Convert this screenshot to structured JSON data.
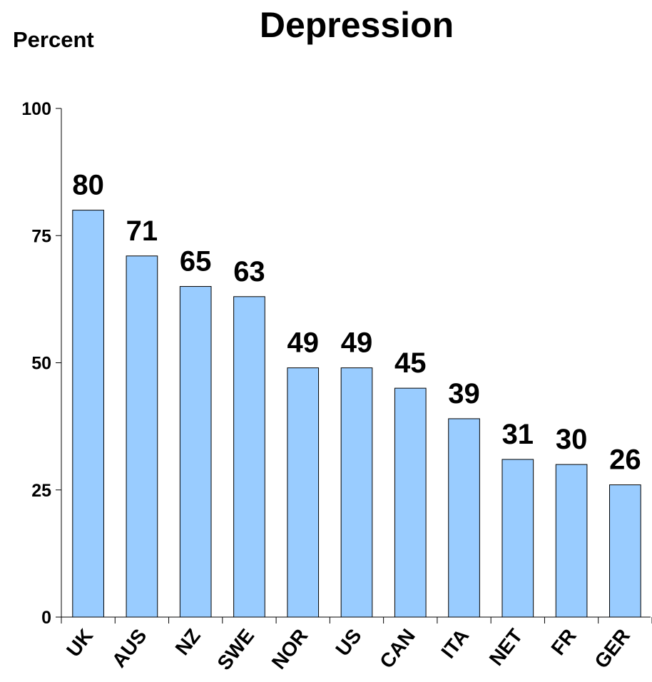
{
  "chart_data": {
    "type": "bar",
    "title": "Depression",
    "ylabel": "Percent",
    "xlabel": "",
    "categories": [
      "UK",
      "AUS",
      "NZ",
      "SWE",
      "NOR",
      "US",
      "CAN",
      "ITA",
      "NET",
      "FR",
      "GER"
    ],
    "values": [
      80,
      71,
      65,
      63,
      49,
      49,
      45,
      39,
      31,
      30,
      26
    ],
    "data_labels": [
      "80",
      "71",
      "65",
      "63",
      "49",
      "49",
      "45",
      "39",
      "31",
      "30",
      "26"
    ],
    "ylim": [
      0,
      100
    ],
    "yticks": [
      0,
      25,
      50,
      75,
      100
    ],
    "ytick_labels": [
      "0",
      "25",
      "50",
      "75",
      "100"
    ],
    "grid": false,
    "legend": "none",
    "colors": {
      "bar_fill": "#99ccff",
      "bar_stroke": "#000000",
      "axis": "#000000",
      "text": "#000000"
    }
  }
}
